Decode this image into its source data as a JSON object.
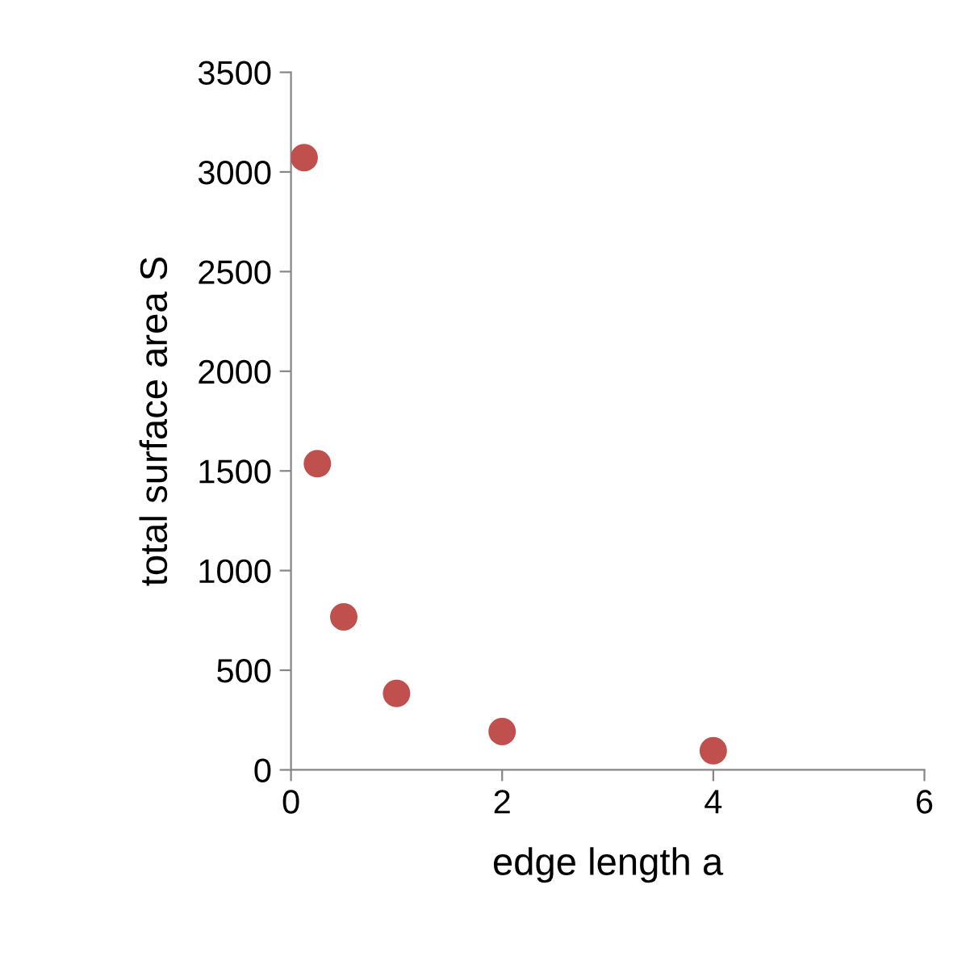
{
  "chart_data": {
    "type": "scatter",
    "xlabel": "edge length a",
    "ylabel": "total surface area S",
    "x": [
      0.125,
      0.25,
      0.5,
      1,
      2,
      4
    ],
    "values": [
      3072,
      1536,
      768,
      384,
      192,
      96
    ],
    "color": "#c0504d",
    "marker": "circle",
    "xlim": [
      0,
      6
    ],
    "xticks": [
      0,
      2,
      4,
      6
    ],
    "ylim": [
      0,
      3500
    ],
    "yticks": [
      0,
      500,
      1000,
      1500,
      2000,
      2500,
      3000,
      3500
    ],
    "grid": false,
    "legend": false
  }
}
